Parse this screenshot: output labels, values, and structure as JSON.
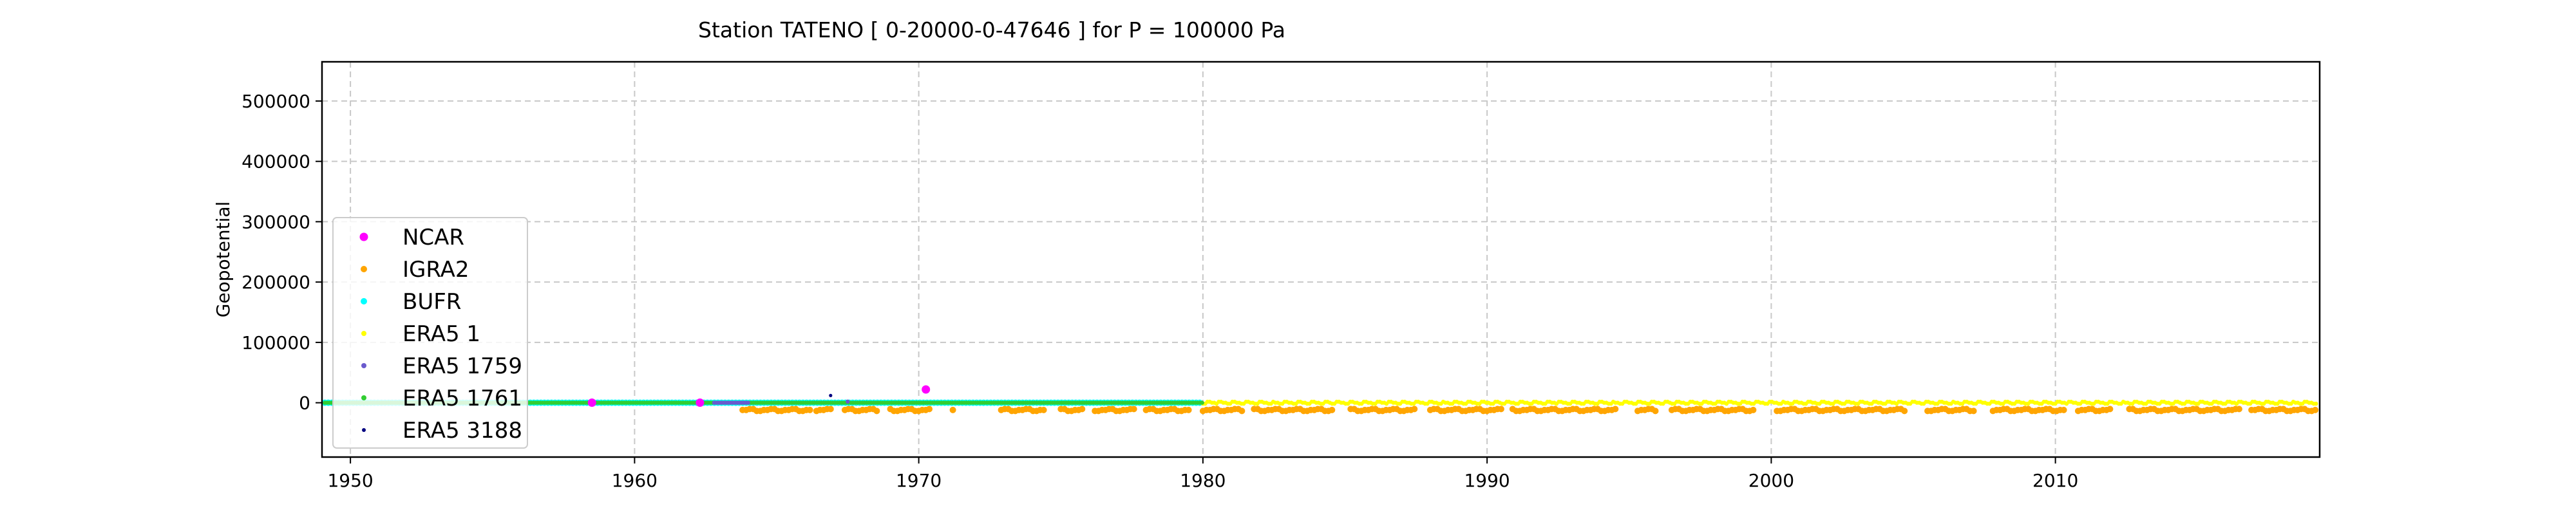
{
  "chart_data": {
    "type": "scatter",
    "title": "Station  TATENO [ 0-20000-0-47646 ]  for P = 100000 Pa",
    "xlabel": "",
    "ylabel": "Geopotential",
    "xlim": [
      1949.0,
      2019.3
    ],
    "ylim": [
      -90000,
      565000
    ],
    "x_ticks": [
      1950,
      1960,
      1970,
      1980,
      1990,
      2000,
      2010
    ],
    "y_ticks": [
      0,
      100000,
      200000,
      300000,
      400000,
      500000
    ],
    "grid": true,
    "legend_position": "lower-left",
    "series": [
      {
        "name": "NCAR",
        "color": "#ff00ff",
        "marker_size": "large",
        "points": [
          [
            1970.25,
            22000
          ],
          [
            1958.5,
            100
          ],
          [
            1962.3,
            100
          ]
        ]
      },
      {
        "name": "IGRA2",
        "color": "#ffa500",
        "marker_size": "medium",
        "ranges": [
          [
            1963.8,
            1966.2
          ],
          [
            1966.4,
            1967.0
          ],
          [
            1967.4,
            1968.6
          ],
          [
            1969.0,
            1970.4
          ],
          [
            1971.2,
            1971.3
          ],
          [
            1972.9,
            1974.5
          ],
          [
            1975.0,
            1975.8
          ],
          [
            1976.2,
            1977.6
          ],
          [
            1978.0,
            1979.6
          ],
          [
            1980.0,
            1981.4
          ],
          [
            1981.8,
            1984.6
          ],
          [
            1985.2,
            1987.5
          ],
          [
            1988.0,
            1990.6
          ],
          [
            1990.9,
            1994.6
          ],
          [
            1995.3,
            1996.0
          ],
          [
            1996.5,
            1999.4
          ],
          [
            2000.2,
            2004.7
          ],
          [
            2005.5,
            2007.2
          ],
          [
            2007.8,
            2010.4
          ],
          [
            2010.8,
            2012.0
          ],
          [
            2012.6,
            2016.5
          ],
          [
            2016.9,
            2019.2
          ]
        ],
        "values_near": -12000
      },
      {
        "name": "BUFR",
        "color": "#00ffff",
        "marker_size": "medium",
        "ranges": [
          [
            1949.1,
            1980.0
          ]
        ],
        "values_near": 0
      },
      {
        "name": "ERA5 1",
        "color": "#ffff00",
        "marker_size": "small",
        "ranges": [
          [
            1980.0,
            2019.2
          ]
        ],
        "values_near": 0
      },
      {
        "name": "ERA5 1759",
        "color": "#6a5acd",
        "marker_size": "small",
        "ranges": [
          [
            1962.8,
            1964.0
          ]
        ],
        "values_near": 0,
        "points": [
          [
            1967.5,
            2000
          ]
        ]
      },
      {
        "name": "ERA5 1761",
        "color": "#32cd32",
        "marker_size": "small",
        "ranges": [
          [
            1949.1,
            1980.0
          ]
        ],
        "values_near": 0
      },
      {
        "name": "ERA5 3188",
        "color": "#000080",
        "marker_size": "tiny",
        "points": [
          [
            1966.9,
            12000
          ]
        ]
      }
    ]
  }
}
